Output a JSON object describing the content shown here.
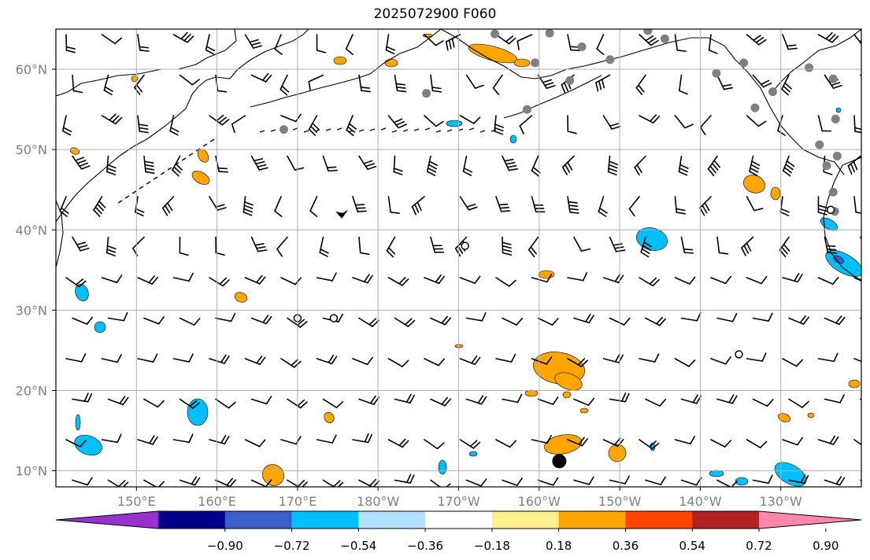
{
  "title": "2025072900 F060",
  "map": {
    "lon_range": [
      140,
      240
    ],
    "lat_range": [
      8,
      65
    ],
    "lat_ticks": [
      {
        "value": 10,
        "label": "10°N"
      },
      {
        "value": 20,
        "label": "20°N"
      },
      {
        "value": 30,
        "label": "30°N"
      },
      {
        "value": 40,
        "label": "40°N"
      },
      {
        "value": 50,
        "label": "50°N"
      },
      {
        "value": 60,
        "label": "60°N"
      }
    ],
    "lon_ticks": [
      {
        "value": 150,
        "label": "150°E"
      },
      {
        "value": 160,
        "label": "160°E"
      },
      {
        "value": 170,
        "label": "170°E"
      },
      {
        "value": 180,
        "label": "180°W"
      },
      {
        "value": 190,
        "label": "170°W"
      },
      {
        "value": 200,
        "label": "160°W"
      },
      {
        "value": 210,
        "label": "150°W"
      },
      {
        "value": 220,
        "label": "140°W"
      },
      {
        "value": 230,
        "label": "130°W"
      }
    ],
    "grid": true,
    "colors": {
      "land_outline": "#000000",
      "grid": "#b0b0b0",
      "tick_label": "#808080",
      "station_grey": "#808080"
    }
  },
  "colorbar": {
    "colors": [
      "#9932cc",
      "#00008b",
      "#3a5fcd",
      "#00bfff",
      "#b0e2ff",
      "#ffffff",
      "#fff08f",
      "#ffa500",
      "#ff4500",
      "#b22222",
      "#ff88aa"
    ],
    "labels": [
      "-0.90",
      "-0.72",
      "-0.54",
      "-0.36",
      "-0.18",
      "0.18",
      "0.36",
      "0.54",
      "0.72",
      "0.90"
    ],
    "extend": "both"
  },
  "markers": {
    "grey_dots": [
      [
        168.3,
        52.5
      ],
      [
        186,
        57
      ],
      [
        194.5,
        64.4
      ],
      [
        198.5,
        55
      ],
      [
        199.5,
        60.8
      ],
      [
        201.3,
        64.5
      ],
      [
        203.8,
        58.6
      ],
      [
        205.3,
        62.8
      ],
      [
        208.8,
        61.2
      ],
      [
        213.5,
        64.8
      ],
      [
        215.6,
        63.8
      ],
      [
        222,
        59.5
      ],
      [
        225.4,
        60.8
      ],
      [
        226.8,
        55.2
      ],
      [
        229,
        57.2
      ],
      [
        233.5,
        60.2
      ],
      [
        236.5,
        58.8
      ],
      [
        236.8,
        53.8
      ],
      [
        234.8,
        50.6
      ],
      [
        235.7,
        48
      ],
      [
        236.5,
        44.7
      ],
      [
        236.7,
        42.3
      ],
      [
        237,
        49.2
      ]
    ],
    "open_circles": [
      [
        170,
        29
      ],
      [
        174.5,
        29
      ],
      [
        190.8,
        38
      ],
      [
        224.8,
        24.5
      ],
      [
        236.2,
        42.5
      ]
    ],
    "big_dot": [
      202.5,
      11.2
    ],
    "calm_flag": [
      175.5,
      41.7
    ]
  }
}
